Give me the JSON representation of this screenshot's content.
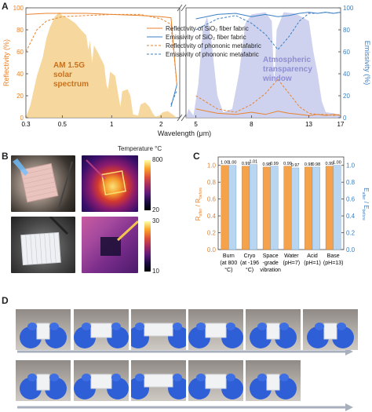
{
  "panels": {
    "a": "A",
    "b": "B",
    "c": "C",
    "d": "D"
  },
  "chart_data": [
    {
      "type": "line",
      "panel": "A",
      "xlabel": "Wavelength (μm)",
      "ylabel_left": "Reflectivity (%)",
      "ylabel_right": "Emissivity (%)",
      "ylim": [
        0,
        100
      ],
      "yticks": [
        "0",
        "20",
        "40",
        "60",
        "80",
        "100"
      ],
      "xticks_left": [
        "0.3",
        "0.5",
        "1",
        "2"
      ],
      "xticks_right": [
        "5",
        "8",
        "13",
        "17"
      ],
      "legend": [
        "Reflectivity of SiO₂ fiber fabric",
        "Emissivity of SiO₂ fiber fabric",
        "Reflectivity of phononic metafabric",
        "Emissivity of phononic metafabric"
      ],
      "annotations": {
        "solar": [
          "AM 1.5G",
          "solar",
          "spectrum"
        ],
        "window": [
          "Atmospheric",
          "transparency",
          "window"
        ]
      },
      "series": [
        {
          "name": "Reflectivity of SiO₂ fiber fabric",
          "x": [
            0.3,
            0.4,
            0.5,
            0.7,
            1,
            1.5,
            2,
            2.3,
            2.5
          ],
          "values": [
            94,
            95,
            95,
            95,
            94,
            93,
            92,
            91,
            30
          ],
          "x_ir": [
            5,
            6,
            7,
            8,
            9,
            10,
            11,
            12,
            13,
            14,
            15,
            16,
            17
          ],
          "values_ir": [
            8,
            4,
            3,
            5,
            3,
            6,
            4,
            3,
            2,
            3,
            2,
            3,
            2
          ]
        },
        {
          "name": "Emissivity of SiO₂ fiber fabric",
          "x": [
            2.3,
            2.5
          ],
          "values": [
            10,
            30
          ],
          "x_ir": [
            5,
            6,
            7,
            8,
            9,
            10,
            11,
            12,
            13,
            14,
            15,
            16,
            17
          ],
          "values_ir": [
            90,
            94,
            95,
            92,
            94,
            92,
            93,
            95,
            96,
            95,
            96,
            95,
            96
          ]
        },
        {
          "name": "Reflectivity of phononic metafabric",
          "x": [
            0.3,
            0.35,
            0.4,
            0.5,
            0.7,
            1,
            1.5,
            2,
            2.3,
            2.5
          ],
          "values": [
            60,
            80,
            88,
            92,
            93,
            94,
            94,
            90,
            85,
            30
          ],
          "x_ir": [
            5,
            6,
            7,
            8,
            9,
            10,
            11,
            12,
            13,
            14,
            15,
            16,
            17
          ],
          "values_ir": [
            20,
            8,
            5,
            12,
            22,
            35,
            22,
            10,
            4,
            3,
            3,
            2,
            3
          ]
        },
        {
          "name": "Emissivity of phononic metafabric",
          "x": [
            2.3,
            2.5
          ],
          "values": [
            12,
            25
          ],
          "x_ir": [
            5,
            6,
            7,
            8,
            9,
            10,
            11,
            12,
            13,
            14,
            15,
            16,
            17
          ],
          "values_ir": [
            80,
            90,
            93,
            86,
            76,
            62,
            74,
            88,
            95,
            95,
            96,
            95,
            96
          ]
        }
      ]
    },
    {
      "type": "bar",
      "panel": "C",
      "categories": [
        [
          "Burn",
          "(at 800",
          "°C)"
        ],
        [
          "Cryo",
          "(at -196",
          "°C)"
        ],
        [
          "Space",
          "-grade",
          "vibration"
        ],
        [
          "Water",
          "(pH=7)"
        ],
        [
          "Acid",
          "(pH=1)"
        ],
        [
          "Base",
          "(pH=13)"
        ]
      ],
      "ylabel_left": "R_after / R_before",
      "ylabel_right": "E_after / E_before",
      "ylim": [
        0,
        1.1
      ],
      "yticks": [
        "0.0",
        "0.2",
        "0.4",
        "0.6",
        "0.8",
        "1.0"
      ],
      "series": [
        {
          "name": "R",
          "values": [
            1.0,
            0.99,
            0.98,
            0.99,
            0.98,
            0.99
          ],
          "labels": [
            "1.00",
            "0.99",
            "0.98",
            "0.99",
            "0.98",
            "0.99"
          ]
        },
        {
          "name": "E",
          "values": [
            1.0,
            1.01,
            0.99,
            0.97,
            0.98,
            1.0
          ],
          "labels": [
            "1.00",
            "1.01",
            "0.99",
            "0.97",
            "0.98",
            "1.00"
          ]
        }
      ],
      "colors": {
        "R": "#f4a24b",
        "E": "#b8d6f2"
      }
    }
  ],
  "thermal": {
    "title": "Temperature °C",
    "bar1": {
      "max": "800",
      "min": "20"
    },
    "bar2": {
      "max": "30",
      "min": "10"
    }
  },
  "colors": {
    "orange": "#e8832f",
    "blue": "#3b7fc4",
    "solar_fill": "#f5d08c",
    "window_fill": "#c9cdec"
  }
}
